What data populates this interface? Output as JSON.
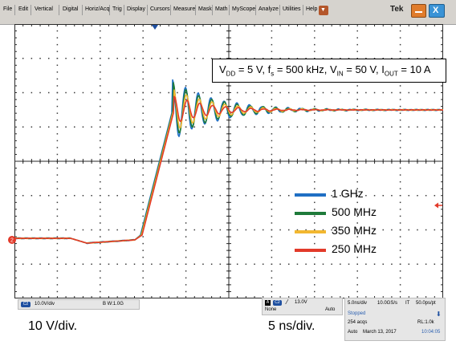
{
  "menu": {
    "items": [
      "File",
      "Edit",
      "Vertical",
      "Digital",
      "Horiz/Acq",
      "Trig",
      "Display",
      "Cursors",
      "Measure",
      "Mask",
      "Math",
      "MyScope",
      "Analyze",
      "Utilities",
      "Help"
    ],
    "dropdown_glyph": "▼",
    "logo": "Tek",
    "close_glyph": "X"
  },
  "conditions": {
    "vdd_sym": "V",
    "vdd_sub": "DD",
    "vdd_val": " = 5 V, ",
    "fs_sym": "f",
    "fs_sub": "s",
    "fs_val": " = 500 kHz, ",
    "vin_sym": "V",
    "vin_sub": "IN",
    "vin_val": " = 50 V, ",
    "iout_sym": "I",
    "iout_sub": "OUT",
    "iout_val": " = 10 A"
  },
  "legend": [
    {
      "label": "1 GHz",
      "color": "#1f6fc4"
    },
    {
      "label": "500 MHz",
      "color": "#1e7a3a"
    },
    {
      "label": "350 MHz",
      "color": "#f2b730"
    },
    {
      "label": "250 MHz",
      "color": "#e23a2a"
    }
  ],
  "channel_marker": "2",
  "channel_readout": {
    "badge": "C2",
    "scale": "10.0V/div",
    "bandwidth": "B W:1.0G"
  },
  "trigger_readout": {
    "source_badge": "A",
    "channel_badge": "C2",
    "slope": "⁄",
    "level": "13.0V",
    "coupling": "None",
    "mode": "Auto"
  },
  "acquisition": {
    "timebase": "5.0ns/div",
    "sample_rate": "10.0GS/s",
    "mode": "IT",
    "resolution": "50.0ps/pt",
    "state": "Stopped",
    "acqs": "254 acqs",
    "record_length": "RL:1.0k",
    "run_mode": "Auto",
    "date": "March 13, 2017",
    "time": "10:04:05",
    "arrow_glyph": "⬇"
  },
  "volts_per_div_caption": "10 V/div.",
  "time_per_div_caption": "5 ns/div.",
  "colors": {
    "grid": "#2a2a2a",
    "menu_bg": "#d6d3ce",
    "accent_blue": "#1e4fa0",
    "trigger_marker": "#e23a2a"
  },
  "icons": [
    "dropdown-icon",
    "minimize-icon",
    "close-icon",
    "trigger-position-icon",
    "trigger-level-icon",
    "channel-ground-icon",
    "acquisition-arrow-icon"
  ]
}
